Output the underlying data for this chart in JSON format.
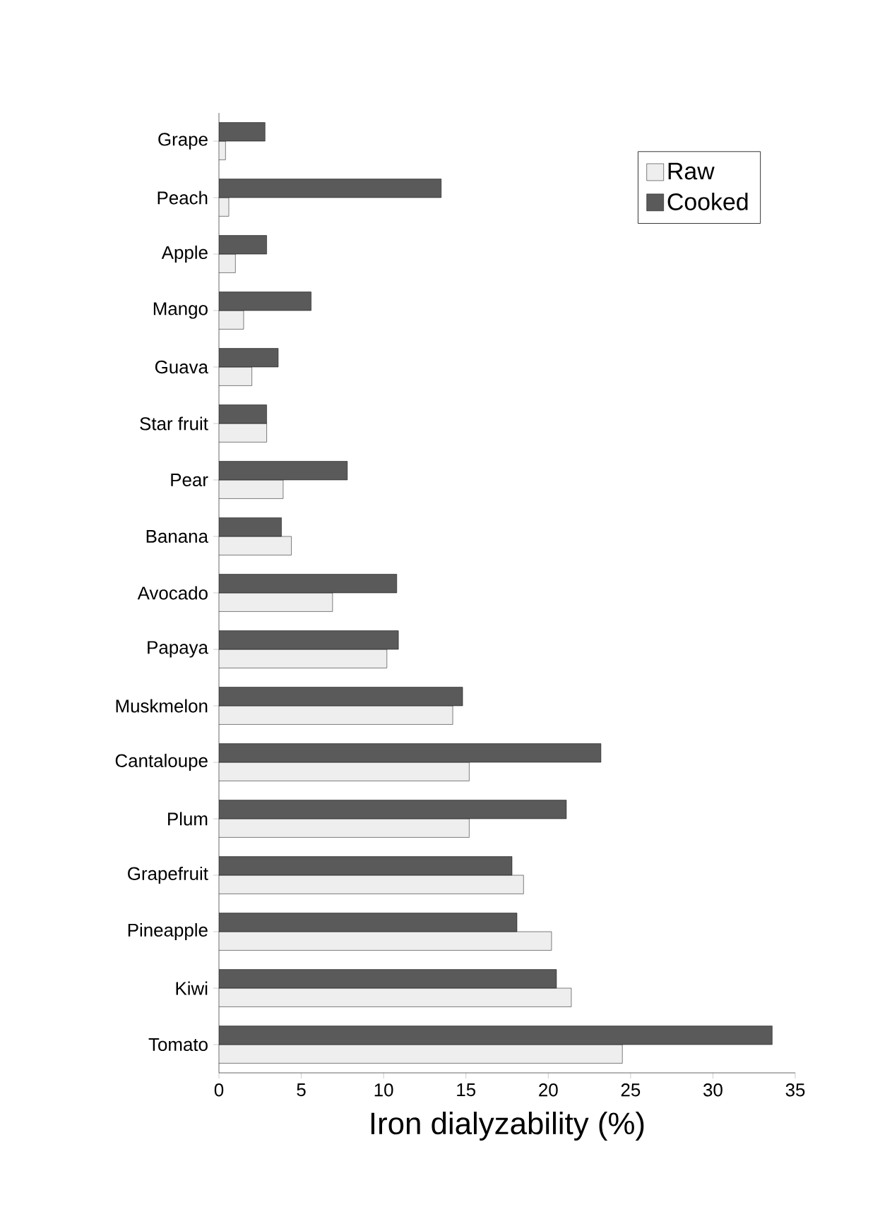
{
  "chart_data": {
    "type": "bar",
    "orientation": "horizontal",
    "xlabel": "Iron dialyzability (%)",
    "categories": [
      "Grape",
      "Peach",
      "Apple",
      "Mango",
      "Guava",
      "Star fruit",
      "Pear",
      "Banana",
      "Avocado",
      "Papaya",
      "Muskmelon",
      "Cantaloupe",
      "Plum",
      "Grapefruit",
      "Pineapple",
      "Kiwi",
      "Tomato"
    ],
    "series": [
      {
        "name": "Raw",
        "color": "#eeeeee",
        "values": [
          0.4,
          0.6,
          1.0,
          1.5,
          2.0,
          2.9,
          3.9,
          4.4,
          6.9,
          10.2,
          14.2,
          15.2,
          15.2,
          18.5,
          20.2,
          21.4,
          24.5
        ]
      },
      {
        "name": "Cooked",
        "color": "#5a5a5a",
        "values": [
          2.8,
          13.5,
          2.9,
          5.6,
          3.6,
          2.9,
          7.8,
          3.8,
          10.8,
          10.9,
          14.8,
          23.2,
          21.1,
          17.8,
          18.1,
          20.5,
          33.6
        ]
      }
    ],
    "xlim": [
      0,
      35
    ],
    "xticks": [
      0,
      5,
      10,
      15,
      20,
      25,
      30,
      35
    ],
    "legend": "top right",
    "grid": false
  }
}
